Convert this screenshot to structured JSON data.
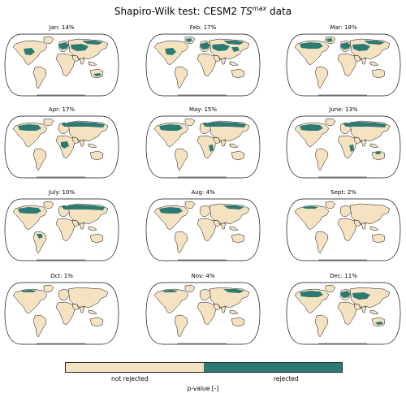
{
  "title": {
    "prefix": "Shapiro-Wilk test: CESM2 ",
    "var": "TS",
    "sup": "max",
    "suffix": " data"
  },
  "colors": {
    "not_rejected": "#f5e2c1",
    "rejected": "#2b7a73",
    "coast": "#111111",
    "ocean": "#ffffff"
  },
  "panels": [
    {
      "label": "Jan: 14%",
      "rejected_regions": [
        "central-north-america",
        "europe",
        "central-asia",
        "siberia",
        "australia-south"
      ]
    },
    {
      "label": "Feb: 17%",
      "rejected_regions": [
        "central-north-america",
        "greenland-coast",
        "europe",
        "central-asia",
        "siberia",
        "east-asia"
      ]
    },
    {
      "label": "Mar: 18%",
      "rejected_regions": [
        "canada",
        "greenland-coast",
        "europe",
        "central-asia",
        "siberia"
      ]
    },
    {
      "label": "Apr: 17%",
      "rejected_regions": [
        "canada",
        "northern-eurasia",
        "central-africa",
        "siberia"
      ]
    },
    {
      "label": "May: 15%",
      "rejected_regions": [
        "canada",
        "northern-eurasia",
        "africa-east",
        "siberia"
      ]
    },
    {
      "label": "June: 13%",
      "rejected_regions": [
        "canada",
        "northern-eurasia",
        "africa-east",
        "australia-north"
      ]
    },
    {
      "label": "July: 10%",
      "rejected_regions": [
        "canada",
        "northern-eurasia",
        "south-america-north"
      ]
    },
    {
      "label": "Aug: 4%",
      "rejected_regions": [
        "canada",
        "siberia"
      ]
    },
    {
      "label": "Sept: 2%",
      "rejected_regions": [
        "arctic-canada"
      ]
    },
    {
      "label": "Oct: 1%",
      "rejected_regions": [
        "arctic-canada"
      ]
    },
    {
      "label": "Nov: 4%",
      "rejected_regions": [
        "arctic-canada",
        "siberia"
      ]
    },
    {
      "label": "Dec: 11%",
      "rejected_regions": [
        "canada",
        "europe",
        "central-asia",
        "australia-south"
      ]
    }
  ],
  "legend": {
    "left_label": "not rejected",
    "right_label": "rejected",
    "title": "p-value [-]"
  }
}
